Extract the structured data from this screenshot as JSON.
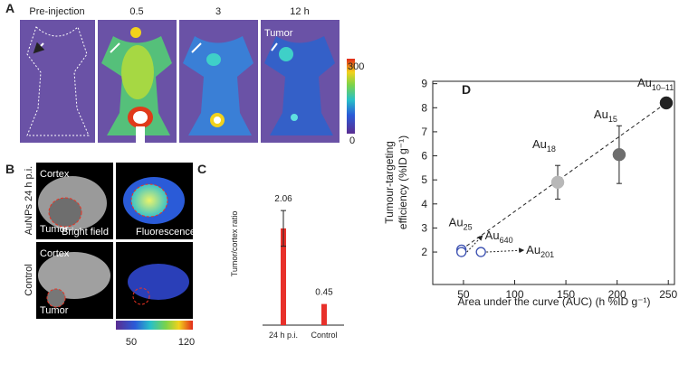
{
  "panels": {
    "A": {
      "label": "A",
      "time_labels": [
        "Pre-injection",
        "0.5",
        "3",
        "12 h"
      ],
      "annotation": "Tumor",
      "colorbar_labels": [
        "300",
        "0"
      ]
    },
    "B": {
      "label": "B",
      "row_labels": [
        "AuNPs 24 h p.i.",
        "Control"
      ],
      "cortex": [
        "Cortex",
        "Cortex"
      ],
      "tumor": [
        "Tumor",
        "Tumor"
      ],
      "column_labels": [
        "Bright field",
        "Fluorescence"
      ],
      "colorbar_labels": [
        "50",
        "120"
      ]
    }
  },
  "chart_data": [
    {
      "type": "bar",
      "label": "C",
      "ylabel": "Tumor/cortex ratio",
      "categories": [
        "24 h p.i.",
        "Control"
      ],
      "values": [
        2.06,
        0.45
      ],
      "errors": [
        0.38,
        null
      ],
      "color": "#e8302a",
      "ylim": [
        0,
        3
      ]
    },
    {
      "type": "scatter",
      "label": "D",
      "xlabel": "Area under the curve (AUC) (h %ID g⁻¹)",
      "ylabel": [
        "Tumour-targeting",
        "efficiency (%ID g⁻¹)"
      ],
      "x": [
        48,
        48,
        67,
        142,
        202,
        248
      ],
      "values": [
        2.1,
        2.0,
        2.0,
        4.9,
        6.05,
        8.2
      ],
      "errors": [
        0.1,
        null,
        null,
        0.7,
        1.2,
        null
      ],
      "point_labels": [
        {
          "text": "Au",
          "sub": "25"
        },
        {
          "text": "Au",
          "sub": "640"
        },
        {
          "text": "Au",
          "sub": "201"
        },
        {
          "text": "Au",
          "sub": "18"
        },
        {
          "text": "Au",
          "sub": "15"
        },
        {
          "text": "Au",
          "sub": "10–11"
        }
      ],
      "colors": [
        "#3a4fb0",
        "#3a4fb0",
        "#3a4fb0",
        "#b8b8b8",
        "#6e6e6e",
        "#222222"
      ],
      "hollow": [
        true,
        true,
        true,
        false,
        false,
        false
      ],
      "xlim": [
        20,
        256
      ],
      "xticks": [
        50,
        100,
        150,
        200,
        250
      ],
      "ylim": [
        0.65,
        9.1
      ],
      "yticks": [
        2,
        3,
        4,
        5,
        6,
        7,
        8,
        9
      ]
    }
  ]
}
